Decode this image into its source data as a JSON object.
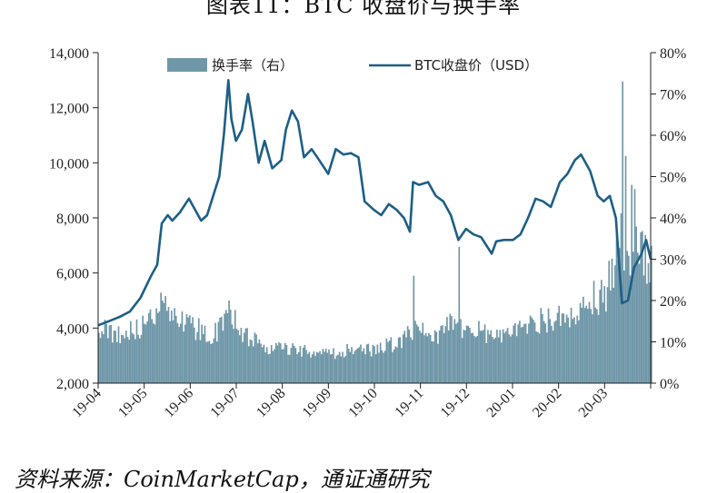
{
  "title": "图表11：BTC 收盘价与换手率",
  "source": "资料来源：CoinMarketCap，通证通研究",
  "colors": {
    "line": "#1d5f86",
    "bars": "#6f97a8",
    "axis": "#222222"
  },
  "chart_data": {
    "type": "line",
    "x_tick_labels": [
      "19-04",
      "19-05",
      "19-06",
      "19-07",
      "19-08",
      "19-09",
      "19-10",
      "19-11",
      "19-12",
      "20-01",
      "20-02",
      "20-03"
    ],
    "x_range": [
      "2019-04-01",
      "2020-03-31"
    ],
    "y_left": {
      "lim": [
        2000,
        14000
      ],
      "ticks": [
        "2,000",
        "4,000",
        "6,000",
        "8,000",
        "10,000",
        "12,000",
        "14,000"
      ]
    },
    "y_right": {
      "lim": [
        0,
        80
      ],
      "ticks": [
        "0%",
        "10%",
        "20%",
        "30%",
        "40%",
        "50%",
        "60%",
        "70%",
        "80%"
      ]
    },
    "legend": {
      "placement": "top",
      "bars_label": "换手率（右）",
      "line_label": "BTC收盘价（USD）"
    },
    "series": [
      {
        "name": "BTC收盘价（USD）",
        "axis": "left",
        "type": "line",
        "points": [
          [
            "2019-04-01",
            4100
          ],
          [
            "2019-04-08",
            4250
          ],
          [
            "2019-04-15",
            4400
          ],
          [
            "2019-04-22",
            4600
          ],
          [
            "2019-04-29",
            5100
          ],
          [
            "2019-05-06",
            5900
          ],
          [
            "2019-05-10",
            6300
          ],
          [
            "2019-05-13",
            7800
          ],
          [
            "2019-05-17",
            8100
          ],
          [
            "2019-05-20",
            7900
          ],
          [
            "2019-05-25",
            8200
          ],
          [
            "2019-05-31",
            8700
          ],
          [
            "2019-06-04",
            8300
          ],
          [
            "2019-06-08",
            7900
          ],
          [
            "2019-06-12",
            8100
          ],
          [
            "2019-06-16",
            8800
          ],
          [
            "2019-06-20",
            9500
          ],
          [
            "2019-06-23",
            11000
          ],
          [
            "2019-06-26",
            13000
          ],
          [
            "2019-06-28",
            11600
          ],
          [
            "2019-07-01",
            10800
          ],
          [
            "2019-07-05",
            11200
          ],
          [
            "2019-07-09",
            12500
          ],
          [
            "2019-07-12",
            11500
          ],
          [
            "2019-07-16",
            10000
          ],
          [
            "2019-07-20",
            10800
          ],
          [
            "2019-07-25",
            9800
          ],
          [
            "2019-07-31",
            10100
          ],
          [
            "2019-08-03",
            11200
          ],
          [
            "2019-08-07",
            11900
          ],
          [
            "2019-08-11",
            11500
          ],
          [
            "2019-08-15",
            10200
          ],
          [
            "2019-08-20",
            10500
          ],
          [
            "2019-08-25",
            10100
          ],
          [
            "2019-08-31",
            9600
          ],
          [
            "2019-09-05",
            10500
          ],
          [
            "2019-09-10",
            10300
          ],
          [
            "2019-09-15",
            10350
          ],
          [
            "2019-09-20",
            10200
          ],
          [
            "2019-09-24",
            8600
          ],
          [
            "2019-09-30",
            8300
          ],
          [
            "2019-10-05",
            8100
          ],
          [
            "2019-10-10",
            8500
          ],
          [
            "2019-10-15",
            8300
          ],
          [
            "2019-10-20",
            8000
          ],
          [
            "2019-10-24",
            7500
          ],
          [
            "2019-10-26",
            9300
          ],
          [
            "2019-10-30",
            9200
          ],
          [
            "2019-11-05",
            9300
          ],
          [
            "2019-11-10",
            8800
          ],
          [
            "2019-11-15",
            8600
          ],
          [
            "2019-11-20",
            8100
          ],
          [
            "2019-11-25",
            7200
          ],
          [
            "2019-11-30",
            7600
          ],
          [
            "2019-12-05",
            7400
          ],
          [
            "2019-12-10",
            7300
          ],
          [
            "2019-12-17",
            6700
          ],
          [
            "2019-12-20",
            7150
          ],
          [
            "2019-12-25",
            7200
          ],
          [
            "2019-12-31",
            7200
          ],
          [
            "2020-01-05",
            7400
          ],
          [
            "2020-01-10",
            8000
          ],
          [
            "2020-01-15",
            8700
          ],
          [
            "2020-01-20",
            8600
          ],
          [
            "2020-01-25",
            8400
          ],
          [
            "2020-01-31",
            9300
          ],
          [
            "2020-02-05",
            9600
          ],
          [
            "2020-02-10",
            10100
          ],
          [
            "2020-02-14",
            10300
          ],
          [
            "2020-02-20",
            9700
          ],
          [
            "2020-02-25",
            8800
          ],
          [
            "2020-02-29",
            8600
          ],
          [
            "2020-03-04",
            8800
          ],
          [
            "2020-03-08",
            8000
          ],
          [
            "2020-03-12",
            4900
          ],
          [
            "2020-03-16",
            5000
          ],
          [
            "2020-03-20",
            6200
          ],
          [
            "2020-03-25",
            6700
          ],
          [
            "2020-03-28",
            7200
          ],
          [
            "2020-03-31",
            6500
          ]
        ]
      },
      {
        "name": "换手率（右）",
        "axis": "right",
        "type": "bar",
        "points": [
          [
            "2019-04-01",
            13
          ],
          [
            "2019-04-16",
            12
          ],
          [
            "2019-05-01",
            14
          ],
          [
            "2019-05-12",
            20
          ],
          [
            "2019-05-20",
            15
          ],
          [
            "2019-06-01",
            14
          ],
          [
            "2019-06-15",
            11
          ],
          [
            "2019-06-26",
            17
          ],
          [
            "2019-07-05",
            12
          ],
          [
            "2019-07-20",
            9
          ],
          [
            "2019-08-01",
            8
          ],
          [
            "2019-08-15",
            8
          ],
          [
            "2019-09-01",
            7
          ],
          [
            "2019-09-15",
            8
          ],
          [
            "2019-10-01",
            8
          ],
          [
            "2019-10-15",
            10
          ],
          [
            "2019-10-25",
            13
          ],
          [
            "2019-11-01",
            12
          ],
          [
            "2019-11-12",
            11
          ],
          [
            "2019-11-20",
            15
          ],
          [
            "2019-12-01",
            13
          ],
          [
            "2019-12-15",
            12
          ],
          [
            "2020-01-01",
            12
          ],
          [
            "2020-01-15",
            15
          ],
          [
            "2020-02-01",
            16
          ],
          [
            "2020-02-15",
            19
          ],
          [
            "2020-03-01",
            22
          ],
          [
            "2020-03-10",
            35
          ],
          [
            "2020-03-20",
            32
          ],
          [
            "2020-03-31",
            28
          ]
        ],
        "spikes": [
          [
            "2019-06-26",
            20
          ],
          [
            "2019-10-26",
            26
          ],
          [
            "2019-11-25",
            33
          ],
          [
            "2020-03-12",
            73
          ],
          [
            "2020-03-14",
            55
          ],
          [
            "2020-03-18",
            48
          ],
          [
            "2020-03-20",
            47
          ]
        ]
      }
    ]
  }
}
